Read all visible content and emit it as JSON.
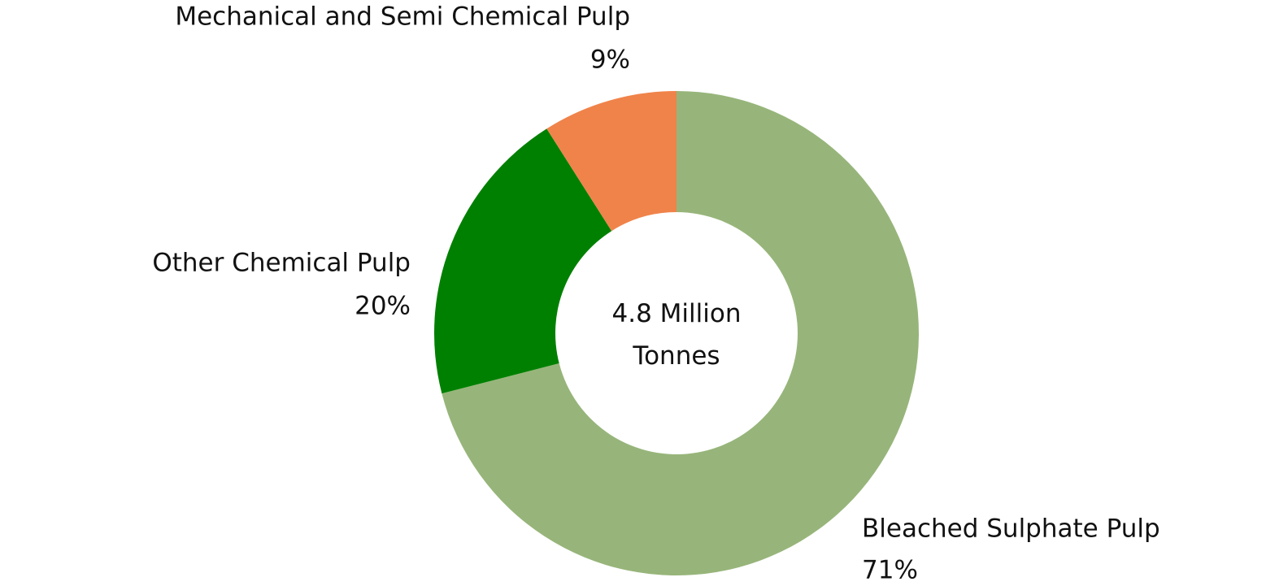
{
  "chart_data": {
    "type": "donut",
    "center_label": "4.8 Million Tonnes",
    "categories": [
      "Bleached Sulphate Pulp",
      "Other Chemical Pulp",
      "Mechanical and Semi Chemical Pulp"
    ],
    "values": [
      71,
      20,
      9
    ],
    "value_labels": [
      "71%",
      "20%",
      "9%"
    ],
    "colors": [
      "#97b57a",
      "#008000",
      "#f0834a"
    ]
  }
}
